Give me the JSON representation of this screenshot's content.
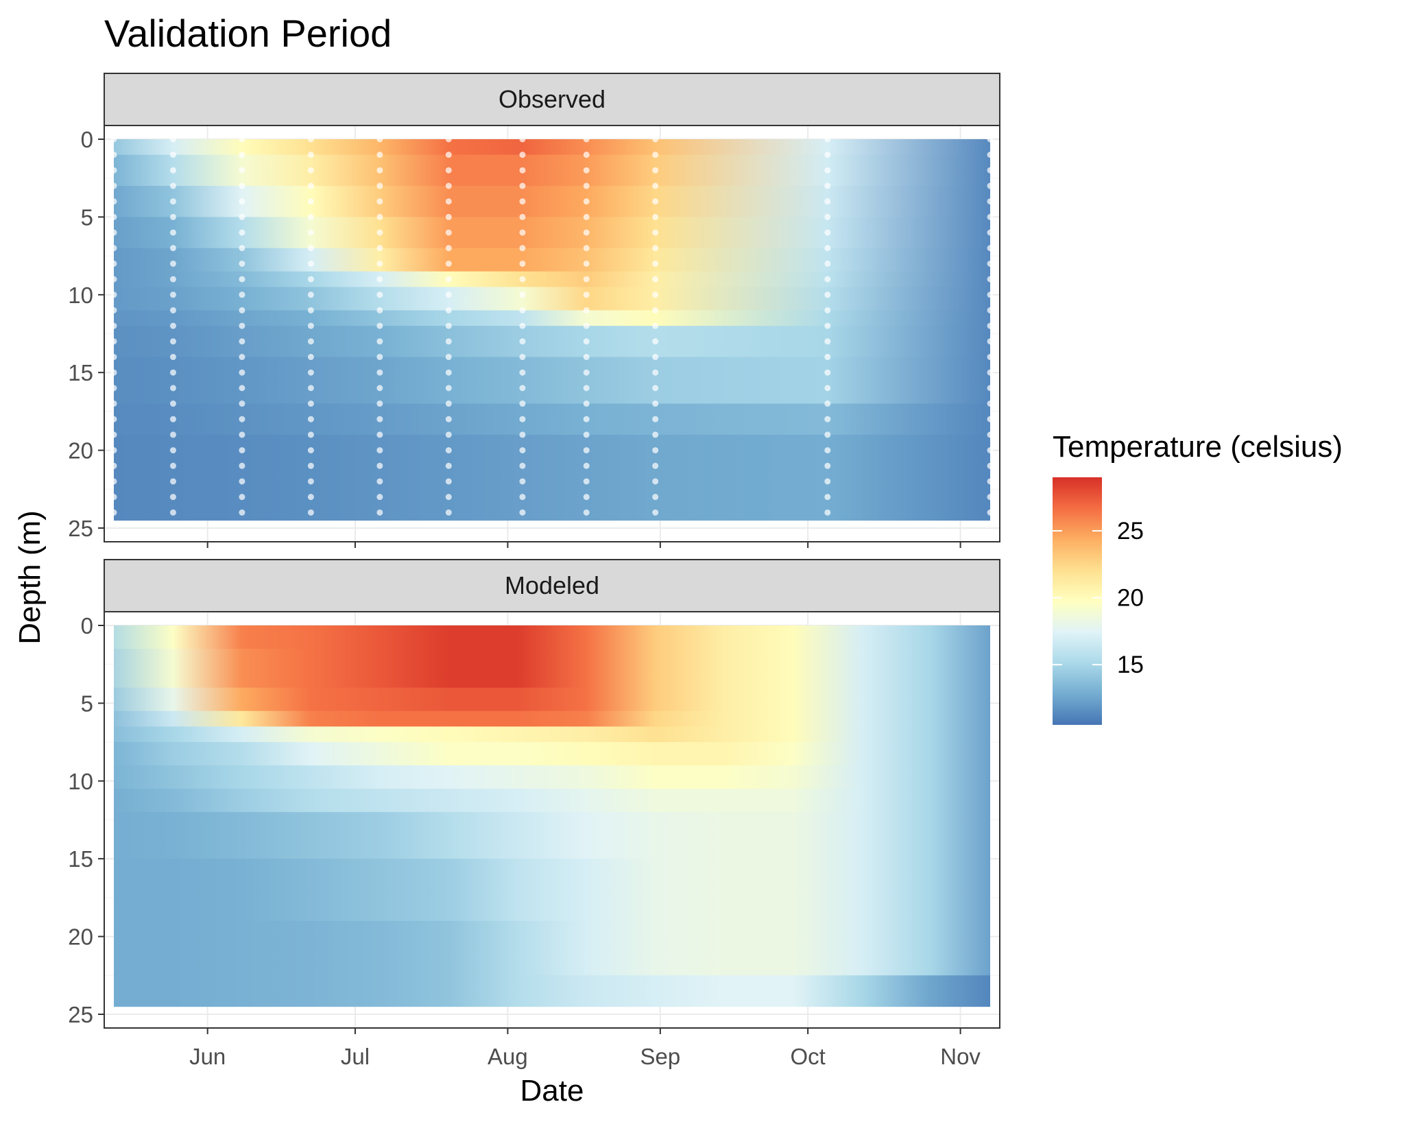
{
  "chart_data": {
    "type": "heatmap",
    "title": "Validation Period",
    "xlabel": "Date",
    "ylabel": "Depth (m)",
    "x_ticks": [
      "Jun",
      "Jul",
      "Aug",
      "Sep",
      "Oct",
      "Nov"
    ],
    "x_tick_dates": [
      "2019-06-01",
      "2019-07-01",
      "2019-08-01",
      "2019-09-01",
      "2019-10-01",
      "2019-11-01"
    ],
    "x_range": [
      "2019-05-11",
      "2019-11-09"
    ],
    "y_ticks": [
      0,
      5,
      10,
      15,
      20,
      25
    ],
    "y_range": [
      25,
      0
    ],
    "depth_range": [
      0,
      24.5
    ],
    "grid": true,
    "legend": {
      "title": "Temperature (celsius)",
      "position": "right",
      "ticks": [
        15,
        20,
        25
      ],
      "range": [
        10.5,
        29
      ],
      "colors": [
        "#4575b4",
        "#74add1",
        "#abd9e9",
        "#e0f3f8",
        "#ffffbf",
        "#fee090",
        "#fdae61",
        "#f46d43",
        "#d73027"
      ]
    },
    "panels": [
      {
        "name": "Observed",
        "sample_dates": [
          "2019-05-12",
          "2019-05-25",
          "2019-06-08",
          "2019-06-22",
          "2019-07-06",
          "2019-07-20",
          "2019-08-04",
          "2019-08-17",
          "2019-08-31",
          "2019-10-05",
          "2019-11-08"
        ],
        "layers": [
          {
            "depth": [
              0,
              1
            ],
            "temps": [
              14,
              17,
              20,
              22,
              24,
              26.5,
              27,
              25.5,
              23.5,
              17,
              11.2
            ]
          },
          {
            "depth": [
              1,
              3
            ],
            "temps": [
              13,
              15.5,
              19,
              21,
              23.5,
              26,
              26,
              25,
              23,
              16.8,
              11.2
            ]
          },
          {
            "depth": [
              3,
              5
            ],
            "temps": [
              12.5,
              14,
              17.5,
              20,
              23,
              25.5,
              25.5,
              24.5,
              22.5,
              16.5,
              11.2
            ]
          },
          {
            "depth": [
              5,
              7
            ],
            "temps": [
              12.2,
              13,
              15.5,
              19,
              22,
              25,
              25,
              24,
              22,
              16.3,
              11.2
            ]
          },
          {
            "depth": [
              7,
              8.5
            ],
            "temps": [
              12,
              12.5,
              14,
              17,
              21,
              24.5,
              24.5,
              23.5,
              21.5,
              16,
              11.2
            ]
          },
          {
            "depth": [
              8.5,
              9.5
            ],
            "temps": [
              12,
              12.5,
              13.5,
              15,
              17,
              20,
              22,
              23,
              21,
              15.8,
              11.2
            ]
          },
          {
            "depth": [
              9.5,
              11
            ],
            "temps": [
              12,
              12.3,
              13,
              14,
              15.5,
              17,
              19,
              22.5,
              21,
              15.5,
              11.2
            ]
          },
          {
            "depth": [
              11,
              12
            ],
            "temps": [
              11.8,
              12,
              12.5,
              13,
              14,
              15,
              16,
              19,
              20,
              15.2,
              11.2
            ]
          },
          {
            "depth": [
              12,
              14
            ],
            "temps": [
              11.6,
              11.8,
              12.2,
              12.6,
              13,
              13.8,
              14.5,
              15,
              15.5,
              15,
              11.2
            ]
          },
          {
            "depth": [
              14,
              17
            ],
            "temps": [
              11.5,
              11.6,
              11.9,
              12.2,
              12.5,
              13,
              13.5,
              14,
              14.5,
              14.8,
              11.2
            ]
          },
          {
            "depth": [
              17,
              19
            ],
            "temps": [
              11.4,
              11.5,
              11.7,
              11.9,
              12.1,
              12.4,
              12.7,
              13,
              13.2,
              13.5,
              11.2
            ]
          },
          {
            "depth": [
              19,
              24.5
            ],
            "temps": [
              11.3,
              11.4,
              11.5,
              11.6,
              11.8,
              12,
              12.2,
              12.4,
              12.6,
              12.8,
              11.2
            ]
          }
        ]
      },
      {
        "name": "Modeled",
        "sample_dates": [
          "2019-05-11",
          "2019-05-25",
          "2019-06-08",
          "2019-06-22",
          "2019-07-06",
          "2019-07-20",
          "2019-08-03",
          "2019-08-17",
          "2019-08-31",
          "2019-09-14",
          "2019-09-28",
          "2019-10-12",
          "2019-10-26",
          "2019-11-09"
        ],
        "layers": [
          {
            "depth": [
              0,
              1.5
            ],
            "temps": [
              15,
              19.5,
              26,
              26.5,
              27.5,
              28.5,
              28.5,
              26.5,
              23,
              21,
              20,
              17,
              15,
              12
            ]
          },
          {
            "depth": [
              1.5,
              4
            ],
            "temps": [
              14.5,
              19,
              25.5,
              26.5,
              27.5,
              28.5,
              28.5,
              26.5,
              23,
              21,
              20,
              17,
              15,
              12
            ]
          },
          {
            "depth": [
              4,
              5.5
            ],
            "temps": [
              14,
              18,
              24.5,
              26.5,
              27,
              27.5,
              27.5,
              26.5,
              23,
              21,
              20,
              17,
              15,
              12
            ]
          },
          {
            "depth": [
              5.5,
              6.5
            ],
            "temps": [
              13.5,
              16.5,
              21.5,
              26,
              26.5,
              26.5,
              26.5,
              26,
              22.5,
              21,
              20,
              17,
              15,
              12
            ]
          },
          {
            "depth": [
              6.5,
              7.5
            ],
            "temps": [
              13.5,
              15,
              17,
              19,
              19.5,
              20,
              20.5,
              21,
              22,
              21,
              20,
              17,
              15,
              12
            ]
          },
          {
            "depth": [
              7.5,
              9
            ],
            "temps": [
              13,
              14.5,
              15.5,
              17.5,
              18.5,
              19.5,
              19.5,
              20,
              20.5,
              20.5,
              19.5,
              17,
              15,
              12
            ]
          },
          {
            "depth": [
              9,
              10.5
            ],
            "temps": [
              13,
              14,
              15,
              16,
              17,
              17.5,
              18,
              18.5,
              19.5,
              19.5,
              19,
              17,
              15,
              12
            ]
          },
          {
            "depth": [
              10.5,
              12
            ],
            "temps": [
              12.8,
              13.5,
              14.5,
              15.5,
              16,
              16.5,
              17,
              17.8,
              18.5,
              18.5,
              18.5,
              17,
              15,
              12
            ]
          },
          {
            "depth": [
              12,
              15
            ],
            "temps": [
              12.8,
              13,
              13.5,
              14,
              14.5,
              15.5,
              16.5,
              17.5,
              18,
              18.3,
              18.3,
              17,
              15,
              12
            ]
          },
          {
            "depth": [
              15,
              19
            ],
            "temps": [
              12.8,
              12.8,
              13,
              13.5,
              14,
              14.5,
              16,
              17,
              18,
              18.3,
              18.3,
              17,
              15,
              12
            ]
          },
          {
            "depth": [
              19,
              22.5
            ],
            "temps": [
              12.8,
              12.8,
              13,
              13.2,
              13.5,
              14,
              15.5,
              17,
              18,
              18.3,
              18.3,
              17,
              15,
              12
            ]
          },
          {
            "depth": [
              22.5,
              24.5
            ],
            "temps": [
              12.8,
              12.8,
              13,
              13.2,
              13.5,
              14,
              15.5,
              16.5,
              17,
              17.5,
              17.5,
              15,
              12.5,
              11
            ]
          }
        ]
      }
    ]
  }
}
